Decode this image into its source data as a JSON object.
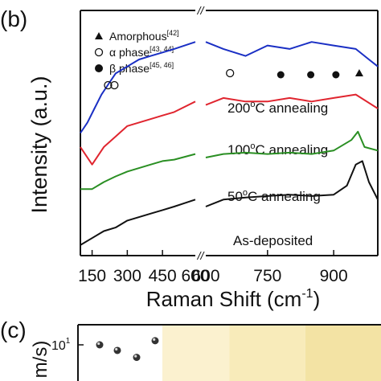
{
  "panel_b": {
    "label": "(b)",
    "chart_data": {
      "type": "line",
      "xlabel": "Raman Shift (cm",
      "xlabel_sup": "-1",
      "xlabel_close": ")",
      "ylabel": "Intensity (a.u.)",
      "axis_break": "//",
      "x_segments": [
        {
          "xlim": [
            100,
            590
          ],
          "ticks": [
            150,
            300,
            450,
            600
          ],
          "tick_labels": [
            "150",
            "300",
            "450",
            "600"
          ]
        },
        {
          "xlim": [
            610,
            1000
          ],
          "ticks": [
            600,
            750,
            900
          ],
          "tick_labels": [
            "600",
            "750",
            "900"
          ]
        }
      ],
      "legend": [
        {
          "marker": "triangle",
          "label": "Amorphous",
          "ref": "[42]"
        },
        {
          "marker": "open-circle",
          "label": "α phase",
          "ref": "[43, 44]"
        },
        {
          "marker": "filled-circle",
          "label": "β phase",
          "ref": "[45, 46]"
        }
      ],
      "series": [
        {
          "label": "200",
          "label_sup": "o",
          "label_rest": "C annealing",
          "color": "#1a2fc4",
          "left": [
            [
              100,
              1.0
            ],
            [
              130,
              1.15
            ],
            [
              160,
              1.35
            ],
            [
              190,
              1.55
            ],
            [
              220,
              1.7
            ],
            [
              250,
              1.85
            ],
            [
              300,
              1.95
            ],
            [
              350,
              2.05
            ],
            [
              400,
              2.1
            ],
            [
              450,
              2.15
            ],
            [
              500,
              2.2
            ],
            [
              590,
              2.3
            ]
          ],
          "right": [
            [
              610,
              2.3
            ],
            [
              650,
              2.2
            ],
            [
              700,
              2.1
            ],
            [
              750,
              2.25
            ],
            [
              800,
              2.2
            ],
            [
              850,
              2.3
            ],
            [
              900,
              2.25
            ],
            [
              950,
              2.2
            ],
            [
              980,
              2.05
            ],
            [
              1000,
              1.95
            ]
          ],
          "markers": [
            {
              "type": "open-circle",
              "x": 218
            },
            {
              "type": "open-circle",
              "x": 245
            },
            {
              "type": "open-circle",
              "x": 665
            },
            {
              "type": "filled-circle",
              "x": 780
            },
            {
              "type": "filled-circle",
              "x": 848
            },
            {
              "type": "filled-circle",
              "x": 905
            },
            {
              "type": "triangle",
              "x": 958
            }
          ]
        },
        {
          "label": "100",
          "label_sup": "o",
          "label_rest": "C annealing",
          "color": "#e0252f",
          "left": [
            [
              100,
              0.8
            ],
            [
              150,
              0.55
            ],
            [
              200,
              0.8
            ],
            [
              250,
              0.95
            ],
            [
              300,
              1.1
            ],
            [
              350,
              1.15
            ],
            [
              400,
              1.2
            ],
            [
              450,
              1.25
            ],
            [
              500,
              1.3
            ],
            [
              590,
              1.45
            ]
          ],
          "right": [
            [
              610,
              1.4
            ],
            [
              650,
              1.5
            ],
            [
              700,
              1.45
            ],
            [
              750,
              1.45
            ],
            [
              800,
              1.5
            ],
            [
              850,
              1.45
            ],
            [
              900,
              1.5
            ],
            [
              950,
              1.55
            ],
            [
              1000,
              1.35
            ]
          ]
        },
        {
          "label": "50",
          "label_sup": "o",
          "label_rest": "C annealing",
          "color": "#2a8f23",
          "left": [
            [
              100,
              0.2
            ],
            [
              150,
              0.2
            ],
            [
              200,
              0.3
            ],
            [
              250,
              0.38
            ],
            [
              300,
              0.45
            ],
            [
              350,
              0.5
            ],
            [
              400,
              0.55
            ],
            [
              450,
              0.6
            ],
            [
              500,
              0.62
            ],
            [
              590,
              0.7
            ]
          ],
          "right": [
            [
              610,
              0.65
            ],
            [
              650,
              0.7
            ],
            [
              700,
              0.72
            ],
            [
              750,
              0.7
            ],
            [
              800,
              0.72
            ],
            [
              850,
              0.7
            ],
            [
              900,
              0.75
            ],
            [
              940,
              0.9
            ],
            [
              955,
              1.02
            ],
            [
              970,
              0.8
            ],
            [
              1000,
              0.75
            ]
          ]
        },
        {
          "label": "As-deposited",
          "label_sup": "",
          "label_rest": "",
          "color": "#111111",
          "left": [
            [
              100,
              -0.6
            ],
            [
              150,
              -0.5
            ],
            [
              200,
              -0.4
            ],
            [
              250,
              -0.35
            ],
            [
              300,
              -0.25
            ],
            [
              350,
              -0.2
            ],
            [
              400,
              -0.15
            ],
            [
              450,
              -0.1
            ],
            [
              500,
              -0.05
            ],
            [
              590,
              0.05
            ]
          ],
          "right": [
            [
              610,
              -0.05
            ],
            [
              650,
              0.05
            ],
            [
              700,
              0.08
            ],
            [
              750,
              0.1
            ],
            [
              800,
              0.12
            ],
            [
              850,
              0.1
            ],
            [
              900,
              0.12
            ],
            [
              930,
              0.25
            ],
            [
              950,
              0.55
            ],
            [
              965,
              0.6
            ],
            [
              980,
              0.3
            ],
            [
              1000,
              0.05
            ]
          ]
        }
      ],
      "ylim": [
        -0.75,
        2.75
      ]
    }
  },
  "panel_c": {
    "label": "(c)",
    "chart_data": {
      "type": "scatter",
      "ylabel_fragment": "m/s)",
      "ytick_label": "10",
      "ytick_exp": "1",
      "points": [
        10.0,
        7.0,
        4.5,
        13.0
      ],
      "marker_color": "#333333",
      "background_bands": [
        "#fdf8e8",
        "#fbf1cf",
        "#f8ebba",
        "#f3e3a4"
      ]
    }
  }
}
